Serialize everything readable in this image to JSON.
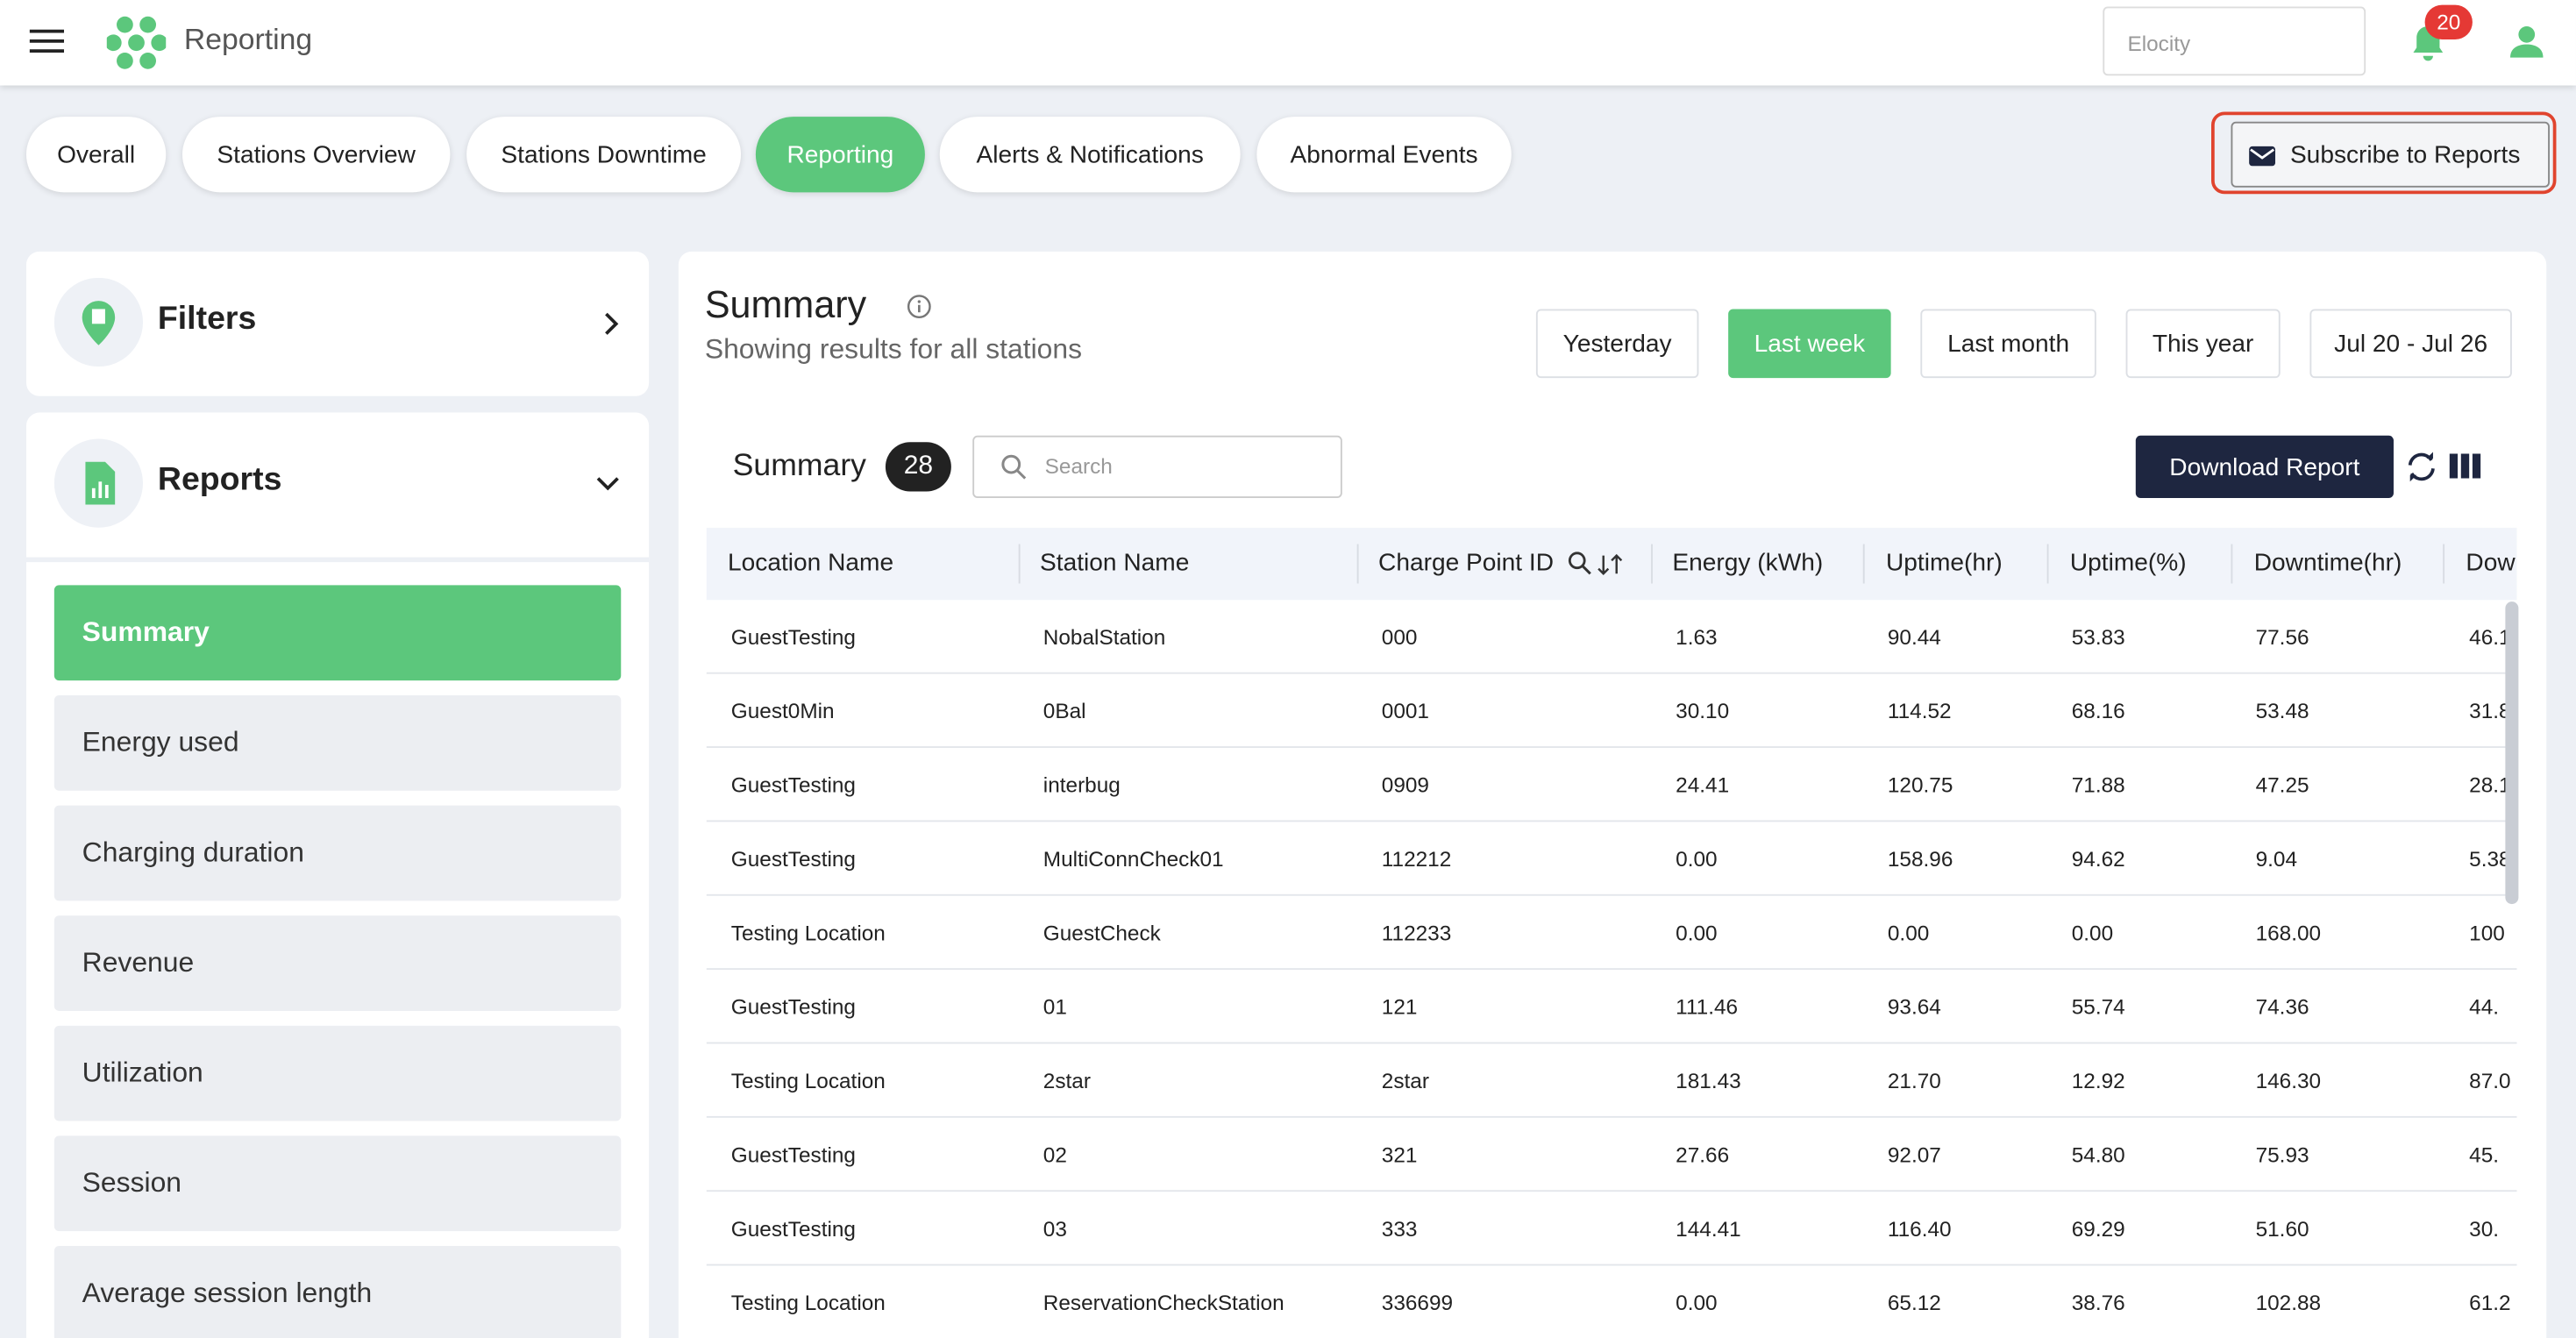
{
  "header": {
    "title": "Reporting",
    "search_placeholder": "Elocity",
    "notification_count": "20"
  },
  "tabs": [
    "Overall",
    "Stations Overview",
    "Stations Downtime",
    "Reporting",
    "Alerts & Notifications",
    "Abnormal Events"
  ],
  "active_tab": "Reporting",
  "subscribe_button": "Subscribe to Reports",
  "sidebar": {
    "filters": "Filters",
    "reports": "Reports",
    "items": [
      "Summary",
      "Energy used",
      "Charging duration",
      "Revenue",
      "Utilization",
      "Session",
      "Average session length"
    ]
  },
  "summary": {
    "title": "Summary",
    "subtitle": "Showing results for all stations",
    "ranges": [
      "Yesterday",
      "Last week",
      "Last month",
      "This year",
      "Jul 20 - Jul 26"
    ],
    "active_range": "Last week",
    "table_title": "Summary",
    "count": "28",
    "search_placeholder": "Search",
    "download_button": "Download Report"
  },
  "table": {
    "columns": [
      "Location Name",
      "Station Name",
      "Charge Point ID",
      "Energy (kWh)",
      "Uptime(hr)",
      "Uptime(%)",
      "Downtime(hr)",
      "Dow"
    ],
    "rows": [
      [
        "GuestTesting",
        "NobalStation",
        "000",
        "1.63",
        "90.44",
        "53.83",
        "77.56",
        "46.1"
      ],
      [
        "Guest0Min",
        "0Bal",
        "0001",
        "30.10",
        "114.52",
        "68.16",
        "53.48",
        "31.8"
      ],
      [
        "GuestTesting",
        "interbug",
        "0909",
        "24.41",
        "120.75",
        "71.88",
        "47.25",
        "28.1"
      ],
      [
        "GuestTesting",
        "MultiConnCheck01",
        "112212",
        "0.00",
        "158.96",
        "94.62",
        "9.04",
        "5.38"
      ],
      [
        "Testing Location",
        "GuestCheck",
        "112233",
        "0.00",
        "0.00",
        "0.00",
        "168.00",
        "100"
      ],
      [
        "GuestTesting",
        "01",
        "121",
        "111.46",
        "93.64",
        "55.74",
        "74.36",
        "44."
      ],
      [
        "Testing Location",
        "2star",
        "2star",
        "181.43",
        "21.70",
        "12.92",
        "146.30",
        "87.0"
      ],
      [
        "GuestTesting",
        "02",
        "321",
        "27.66",
        "92.07",
        "54.80",
        "75.93",
        "45."
      ],
      [
        "GuestTesting",
        "03",
        "333",
        "144.41",
        "116.40",
        "69.29",
        "51.60",
        "30."
      ],
      [
        "Testing Location",
        "ReservationCheckStation",
        "336699",
        "0.00",
        "65.12",
        "38.76",
        "102.88",
        "61.2"
      ]
    ]
  }
}
